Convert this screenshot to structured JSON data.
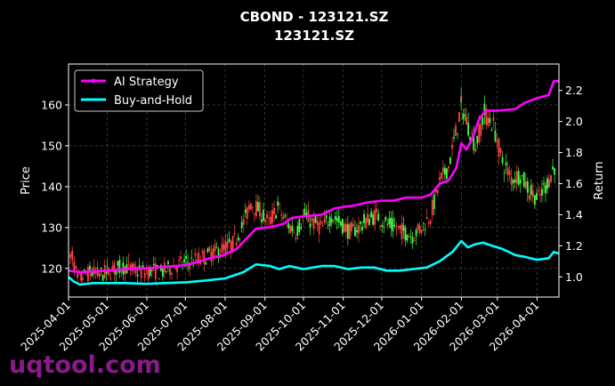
{
  "page": {
    "watermark": "uqtool.com"
  },
  "chart_data": {
    "type": "line",
    "title": "CBOND - 123121.SZ",
    "subtitle": "123121.SZ",
    "ylabel": "Price",
    "ylabel_right": "Return",
    "xlabel": "",
    "grid": true,
    "legend_position": "top-left",
    "background": "#000000",
    "colors": {
      "ai_strategy": "#ff00ff",
      "buy_and_hold": "#00ffff",
      "candle_up": "#44ff44",
      "candle_down": "#ff4444"
    },
    "x_ticks": [
      "2025-04-01",
      "2025-05-01",
      "2025-06-01",
      "2025-07-01",
      "2025-08-01",
      "2025-09-01",
      "2025-10-01",
      "2025-11-01",
      "2025-12-01",
      "2026-01-01",
      "2026-02-01",
      "2026-03-01",
      "2026-04-01"
    ],
    "xlim": [
      "2025-04-01",
      "2026-04-18"
    ],
    "y_left": {
      "ticks": [
        120,
        130,
        140,
        150,
        160
      ],
      "tick_labels": [
        "120",
        "130",
        "140",
        "150",
        "160"
      ],
      "ylim": [
        113,
        170
      ]
    },
    "y_right": {
      "ticks": [
        1.0,
        1.2,
        1.4,
        1.6,
        1.8,
        2.0,
        2.2
      ],
      "tick_labels": [
        "1.0",
        "1.2",
        "1.4",
        "1.6",
        "1.8",
        "2.0",
        "2.2"
      ],
      "ylim": [
        0.87,
        2.37
      ]
    },
    "price_series": [
      [
        "2025-04-01",
        122
      ],
      [
        "2025-04-04",
        123
      ],
      [
        "2025-04-08",
        117
      ],
      [
        "2025-04-12",
        118
      ],
      [
        "2025-04-18",
        119
      ],
      [
        "2025-04-25",
        118.5
      ],
      [
        "2025-05-01",
        119
      ],
      [
        "2025-05-08",
        120
      ],
      [
        "2025-05-15",
        120.5
      ],
      [
        "2025-05-22",
        119.5
      ],
      [
        "2025-05-29",
        119
      ],
      [
        "2025-06-05",
        119.5
      ],
      [
        "2025-06-12",
        119
      ],
      [
        "2025-06-19",
        120
      ],
      [
        "2025-06-26",
        121
      ],
      [
        "2025-07-03",
        121.5
      ],
      [
        "2025-07-10",
        122
      ],
      [
        "2025-07-17",
        123
      ],
      [
        "2025-07-24",
        124
      ],
      [
        "2025-07-31",
        125
      ],
      [
        "2025-08-07",
        126
      ],
      [
        "2025-08-14",
        130
      ],
      [
        "2025-08-21",
        136
      ],
      [
        "2025-08-28",
        134
      ],
      [
        "2025-09-04",
        131
      ],
      [
        "2025-09-11",
        135
      ],
      [
        "2025-09-18",
        131
      ],
      [
        "2025-09-25",
        129
      ],
      [
        "2025-10-02",
        133
      ],
      [
        "2025-10-09",
        131
      ],
      [
        "2025-10-16",
        130
      ],
      [
        "2025-10-23",
        133
      ],
      [
        "2025-10-30",
        131
      ],
      [
        "2025-11-06",
        129
      ],
      [
        "2025-11-13",
        130
      ],
      [
        "2025-11-20",
        132
      ],
      [
        "2025-11-27",
        133
      ],
      [
        "2025-12-04",
        131
      ],
      [
        "2025-12-11",
        130
      ],
      [
        "2025-12-18",
        129
      ],
      [
        "2025-12-25",
        128
      ],
      [
        "2026-01-01",
        130
      ],
      [
        "2026-01-08",
        133
      ],
      [
        "2026-01-15",
        141
      ],
      [
        "2026-01-22",
        145
      ],
      [
        "2026-01-29",
        155
      ],
      [
        "2026-02-01",
        160
      ],
      [
        "2026-02-05",
        156
      ],
      [
        "2026-02-12",
        150
      ],
      [
        "2026-02-19",
        158
      ],
      [
        "2026-02-26",
        155
      ],
      [
        "2026-03-05",
        146
      ],
      [
        "2026-03-12",
        142
      ],
      [
        "2026-03-19",
        143
      ],
      [
        "2026-03-26",
        139
      ],
      [
        "2026-04-02",
        137
      ],
      [
        "2026-04-09",
        141
      ],
      [
        "2026-04-16",
        146
      ]
    ],
    "series": [
      {
        "name": "AI Strategy",
        "points": [
          [
            "2025-04-01",
            1.04
          ],
          [
            "2025-04-10",
            1.03
          ],
          [
            "2025-04-20",
            1.035
          ],
          [
            "2025-05-01",
            1.04
          ],
          [
            "2025-05-15",
            1.05
          ],
          [
            "2025-06-01",
            1.055
          ],
          [
            "2025-06-15",
            1.065
          ],
          [
            "2025-07-01",
            1.075
          ],
          [
            "2025-07-10",
            1.095
          ],
          [
            "2025-07-20",
            1.12
          ],
          [
            "2025-07-31",
            1.14
          ],
          [
            "2025-08-10",
            1.18
          ],
          [
            "2025-08-18",
            1.25
          ],
          [
            "2025-08-25",
            1.31
          ],
          [
            "2025-09-05",
            1.32
          ],
          [
            "2025-09-15",
            1.34
          ],
          [
            "2025-09-22",
            1.38
          ],
          [
            "2025-10-01",
            1.39
          ],
          [
            "2025-10-15",
            1.4
          ],
          [
            "2025-10-25",
            1.44
          ],
          [
            "2025-11-01",
            1.45
          ],
          [
            "2025-11-10",
            1.46
          ],
          [
            "2025-11-20",
            1.48
          ],
          [
            "2025-12-01",
            1.49
          ],
          [
            "2025-12-10",
            1.49
          ],
          [
            "2025-12-20",
            1.51
          ],
          [
            "2026-01-01",
            1.51
          ],
          [
            "2026-01-08",
            1.53
          ],
          [
            "2026-01-15",
            1.6
          ],
          [
            "2026-01-22",
            1.62
          ],
          [
            "2026-01-28",
            1.7
          ],
          [
            "2026-02-01",
            1.86
          ],
          [
            "2026-02-05",
            1.82
          ],
          [
            "2026-02-10",
            1.9
          ],
          [
            "2026-02-15",
            2.02
          ],
          [
            "2026-02-20",
            2.07
          ],
          [
            "2026-03-01",
            2.07
          ],
          [
            "2026-03-15",
            2.08
          ],
          [
            "2026-03-22",
            2.12
          ],
          [
            "2026-04-01",
            2.15
          ],
          [
            "2026-04-10",
            2.17
          ],
          [
            "2026-04-14",
            2.26
          ],
          [
            "2026-04-18",
            2.26
          ]
        ]
      },
      {
        "name": "Buy-and-Hold",
        "points": [
          [
            "2025-04-01",
            1.0
          ],
          [
            "2025-04-05",
            0.97
          ],
          [
            "2025-04-10",
            0.95
          ],
          [
            "2025-04-20",
            0.96
          ],
          [
            "2025-05-01",
            0.96
          ],
          [
            "2025-05-15",
            0.96
          ],
          [
            "2025-06-01",
            0.955
          ],
          [
            "2025-06-15",
            0.96
          ],
          [
            "2025-07-01",
            0.965
          ],
          [
            "2025-07-15",
            0.975
          ],
          [
            "2025-08-01",
            0.99
          ],
          [
            "2025-08-15",
            1.03
          ],
          [
            "2025-08-25",
            1.08
          ],
          [
            "2025-09-05",
            1.07
          ],
          [
            "2025-09-12",
            1.05
          ],
          [
            "2025-09-20",
            1.07
          ],
          [
            "2025-10-01",
            1.05
          ],
          [
            "2025-10-15",
            1.07
          ],
          [
            "2025-10-25",
            1.07
          ],
          [
            "2025-11-05",
            1.05
          ],
          [
            "2025-11-15",
            1.06
          ],
          [
            "2025-11-25",
            1.06
          ],
          [
            "2025-12-05",
            1.04
          ],
          [
            "2025-12-15",
            1.04
          ],
          [
            "2025-12-25",
            1.05
          ],
          [
            "2026-01-05",
            1.06
          ],
          [
            "2026-01-15",
            1.1
          ],
          [
            "2026-01-25",
            1.16
          ],
          [
            "2026-02-01",
            1.23
          ],
          [
            "2026-02-06",
            1.19
          ],
          [
            "2026-02-12",
            1.21
          ],
          [
            "2026-02-18",
            1.22
          ],
          [
            "2026-02-25",
            1.2
          ],
          [
            "2026-03-05",
            1.18
          ],
          [
            "2026-03-15",
            1.14
          ],
          [
            "2026-03-22",
            1.13
          ],
          [
            "2026-04-01",
            1.11
          ],
          [
            "2026-04-10",
            1.12
          ],
          [
            "2026-04-14",
            1.16
          ],
          [
            "2026-04-18",
            1.15
          ]
        ]
      }
    ]
  }
}
